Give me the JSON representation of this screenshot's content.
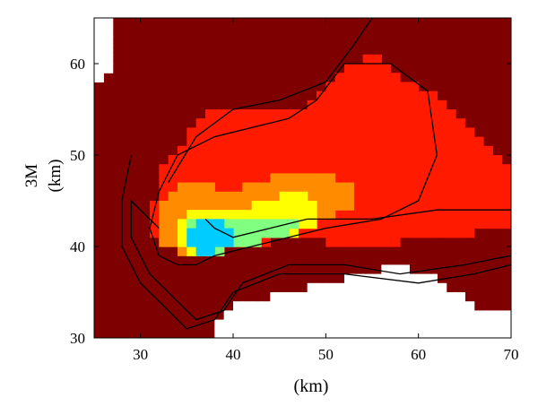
{
  "chart_data": {
    "type": "heatmap",
    "title": "",
    "xlabel": "(km)",
    "ylabel_lines": [
      "3M",
      "(km)"
    ],
    "xlim": [
      25,
      70
    ],
    "ylim": [
      30,
      65
    ],
    "xticks": [
      30,
      40,
      50,
      60,
      70
    ],
    "yticks": [
      30,
      40,
      50,
      60
    ],
    "grid": false,
    "legend": "none",
    "cell_size_km": 1,
    "colors": {
      "dark_red": "#7f0000",
      "red": "#ff1a00",
      "orange": "#ff8c00",
      "yellow": "#ffff00",
      "green": "#80ff80",
      "cyan": "#00ccff",
      "blank": "#ffffff",
      "contour": "#000000"
    },
    "regions": [
      {
        "value": "red",
        "polygon": [
          [
            31,
            42
          ],
          [
            32,
            48
          ],
          [
            35,
            52
          ],
          [
            38,
            55
          ],
          [
            44,
            55
          ],
          [
            48,
            55
          ],
          [
            51,
            59
          ],
          [
            55,
            61
          ],
          [
            59,
            58
          ],
          [
            63,
            56
          ],
          [
            67,
            52
          ],
          [
            70,
            48
          ],
          [
            70,
            42
          ],
          [
            62,
            41
          ],
          [
            54,
            40
          ],
          [
            47,
            41
          ],
          [
            41,
            40
          ],
          [
            37,
            39
          ],
          [
            33,
            40
          ]
        ]
      },
      {
        "value": "orange",
        "polygon": [
          [
            32,
            40
          ],
          [
            32,
            44
          ],
          [
            34,
            47
          ],
          [
            37,
            47
          ],
          [
            40,
            46
          ],
          [
            43,
            47
          ],
          [
            46,
            48
          ],
          [
            50,
            48
          ],
          [
            53,
            47
          ],
          [
            53,
            44
          ],
          [
            50,
            43
          ],
          [
            45,
            41
          ],
          [
            40,
            40
          ],
          [
            36,
            39
          ]
        ]
      },
      {
        "value": "yellow",
        "polygon": [
          [
            34,
            40
          ],
          [
            34,
            43
          ],
          [
            37,
            44
          ],
          [
            41,
            44
          ],
          [
            44,
            45
          ],
          [
            47,
            46
          ],
          [
            49,
            45
          ],
          [
            49,
            42
          ],
          [
            45,
            41
          ],
          [
            41,
            40
          ],
          [
            37,
            39
          ]
        ]
      },
      {
        "value": "green",
        "polygon": [
          [
            35,
            40
          ],
          [
            35,
            43
          ],
          [
            39,
            43
          ],
          [
            43,
            43
          ],
          [
            47,
            43
          ],
          [
            48,
            42
          ],
          [
            45,
            41
          ],
          [
            41,
            40
          ],
          [
            37,
            39
          ]
        ]
      },
      {
        "value": "cyan",
        "polygon": [
          [
            35,
            40
          ],
          [
            35,
            42
          ],
          [
            38,
            43
          ],
          [
            40,
            42
          ],
          [
            41,
            41
          ],
          [
            39,
            40
          ],
          [
            37,
            39
          ]
        ]
      },
      {
        "value": "blank",
        "polygon": [
          [
            25,
            65
          ],
          [
            27,
            65
          ],
          [
            27,
            59
          ],
          [
            25,
            58
          ]
        ]
      },
      {
        "value": "blank",
        "polygon": [
          [
            38,
            30
          ],
          [
            39,
            33
          ],
          [
            42,
            34
          ],
          [
            46,
            35
          ],
          [
            50,
            36
          ],
          [
            54,
            37
          ],
          [
            58,
            38
          ],
          [
            61,
            37
          ],
          [
            64,
            35
          ],
          [
            67,
            33
          ],
          [
            70,
            33
          ],
          [
            70,
            30
          ]
        ]
      }
    ],
    "contours": [
      [
        [
          36,
          38
        ],
        [
          38,
          39
        ],
        [
          42,
          40
        ],
        [
          46,
          41
        ],
        [
          50,
          42
        ],
        [
          56,
          43
        ],
        [
          60,
          45
        ],
        [
          62,
          50
        ],
        [
          61,
          57
        ],
        [
          57,
          60
        ],
        [
          52,
          60
        ],
        [
          49,
          56
        ],
        [
          46,
          54
        ],
        [
          42,
          53
        ],
        [
          38,
          52
        ],
        [
          34,
          50
        ],
        [
          32,
          46
        ],
        [
          31,
          42
        ],
        [
          32,
          39
        ],
        [
          34,
          38
        ],
        [
          36,
          38
        ]
      ],
      [
        [
          33,
          47
        ],
        [
          36,
          52
        ],
        [
          40,
          55
        ],
        [
          45,
          56
        ],
        [
          50,
          58
        ],
        [
          53,
          62
        ],
        [
          55,
          65
        ]
      ],
      [
        [
          32,
          42
        ],
        [
          29,
          45
        ],
        [
          29,
          41
        ],
        [
          31,
          37
        ],
        [
          34,
          34
        ],
        [
          36,
          32
        ],
        [
          39,
          33
        ],
        [
          41,
          36
        ],
        [
          46,
          38
        ],
        [
          52,
          38
        ],
        [
          58,
          37
        ],
        [
          65,
          38
        ],
        [
          70,
          39
        ]
      ],
      [
        [
          29,
          50
        ],
        [
          28,
          45
        ],
        [
          28,
          40
        ],
        [
          30,
          36
        ],
        [
          33,
          33
        ],
        [
          35,
          31
        ],
        [
          38,
          32
        ],
        [
          40,
          35
        ],
        [
          45,
          37
        ],
        [
          52,
          37
        ],
        [
          60,
          36
        ],
        [
          66,
          37
        ],
        [
          70,
          38
        ]
      ],
      [
        [
          37,
          43
        ],
        [
          38,
          42
        ],
        [
          40,
          41
        ],
        [
          44,
          42
        ],
        [
          48,
          43
        ],
        [
          55,
          43
        ],
        [
          62,
          44
        ],
        [
          70,
          44
        ]
      ]
    ]
  }
}
